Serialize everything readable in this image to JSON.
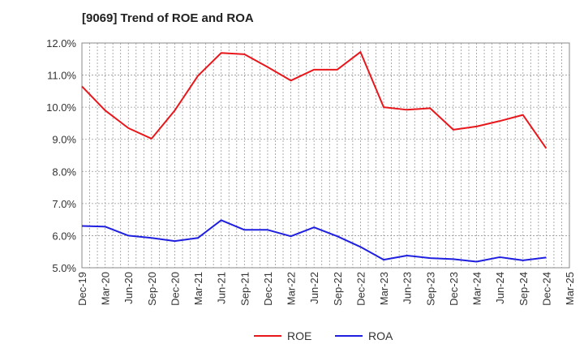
{
  "chart_data": {
    "type": "line",
    "title": "[9069]  Trend of ROE and ROA",
    "xlabel": "",
    "ylabel": "",
    "ylim": [
      5.0,
      12.0
    ],
    "yticks": [
      "5.0%",
      "6.0%",
      "7.0%",
      "8.0%",
      "9.0%",
      "10.0%",
      "11.0%",
      "12.0%"
    ],
    "categories": [
      "Dec-19",
      "Mar-20",
      "Jun-20",
      "Sep-20",
      "Dec-20",
      "Mar-21",
      "Jun-21",
      "Sep-21",
      "Dec-21",
      "Mar-22",
      "Jun-22",
      "Sep-22",
      "Dec-22",
      "Mar-23",
      "Jun-23",
      "Sep-23",
      "Dec-23",
      "Mar-24",
      "Jun-24",
      "Sep-24",
      "Dec-24",
      "Mar-25"
    ],
    "grid": true,
    "legend_position": "bottom-center",
    "series": [
      {
        "name": "ROE",
        "color": "#e8171c",
        "values": [
          10.65,
          9.9,
          9.35,
          9.02,
          9.9,
          10.98,
          11.69,
          11.65,
          11.25,
          10.83,
          11.17,
          11.17,
          11.72,
          10.0,
          9.92,
          9.97,
          9.3,
          9.4,
          9.57,
          9.76,
          8.72,
          null
        ]
      },
      {
        "name": "ROA",
        "color": "#1f1fe0",
        "values": [
          6.3,
          6.28,
          6.0,
          5.93,
          5.83,
          5.93,
          6.48,
          6.18,
          6.18,
          5.98,
          6.26,
          5.98,
          5.65,
          5.25,
          5.38,
          5.3,
          5.27,
          5.19,
          5.33,
          5.23,
          5.32,
          null
        ]
      }
    ]
  }
}
